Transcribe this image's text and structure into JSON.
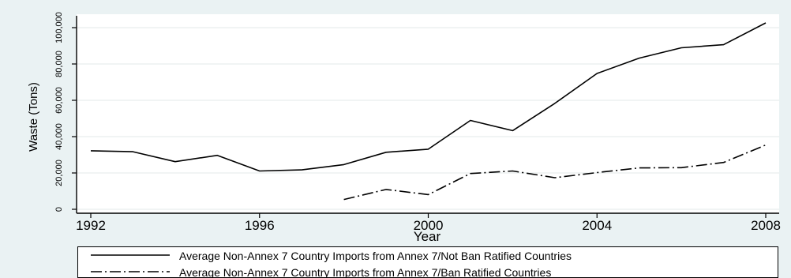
{
  "chart_data": {
    "type": "line",
    "xlabel": "Year",
    "ylabel": "Waste (Tons)",
    "xlim": [
      1992,
      2008
    ],
    "ylim": [
      0,
      100000
    ],
    "x_ticks": [
      "1992",
      "1996",
      "2000",
      "2004",
      "2008"
    ],
    "y_ticks": [
      "0",
      "20,000",
      "40,000",
      "60,000",
      "80,000",
      "100,000"
    ],
    "grid": true,
    "legend_position": "bottom",
    "series": [
      {
        "name": "Average Non-Annex 7 Country Imports from Annex 7/Not Ban Ratified Countries",
        "style": "solid",
        "x": [
          1992,
          1993,
          1994,
          1995,
          1996,
          1997,
          1998,
          1999,
          2000,
          2001,
          2002,
          2003,
          2004,
          2005,
          2006,
          2007,
          2008
        ],
        "values": [
          32200,
          31700,
          26200,
          29700,
          21100,
          21700,
          24600,
          31400,
          33100,
          48900,
          43300,
          58300,
          74800,
          83200,
          88900,
          90600,
          102600
        ]
      },
      {
        "name": "Average Non-Annex 7 Country Imports from Annex 7/Ban Ratified Countries",
        "style": "dash-dot",
        "x": [
          1998,
          1999,
          2000,
          2001,
          2002,
          2003,
          2004,
          2005,
          2006,
          2007,
          2008
        ],
        "values": [
          5400,
          10900,
          8100,
          19700,
          21100,
          17400,
          20200,
          22800,
          22900,
          25800,
          35400
        ]
      }
    ]
  },
  "colors": {
    "page_background": "#eaf2f3",
    "plot_background": "#ffffff",
    "line": "#000000",
    "grid": "#e3eaea"
  }
}
